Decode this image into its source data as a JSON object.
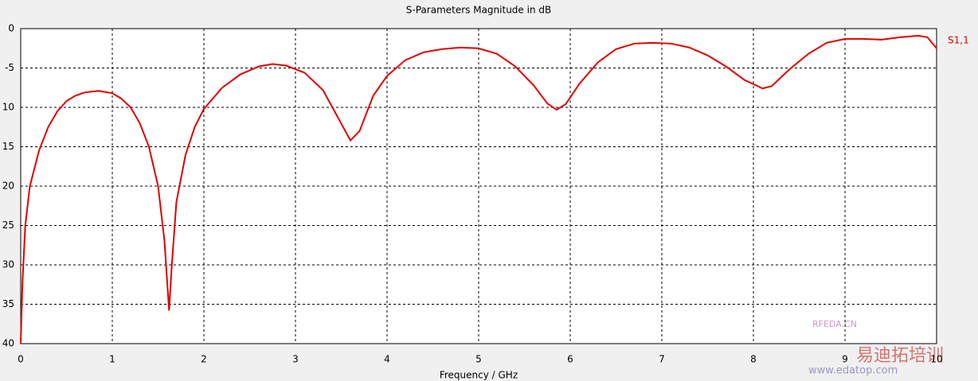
{
  "chart_data": {
    "type": "line",
    "title": "S-Parameters Magnitude in dB",
    "xlabel": "Frequency / GHz",
    "x": [
      0,
      0.02,
      0.05,
      0.1,
      0.2,
      0.3,
      0.4,
      0.5,
      0.6,
      0.7,
      0.85,
      1.0,
      1.1,
      1.2,
      1.3,
      1.4,
      1.5,
      1.57,
      1.62,
      1.65,
      1.7,
      1.8,
      1.9,
      2.0,
      2.2,
      2.4,
      2.6,
      2.75,
      2.9,
      3.1,
      3.3,
      3.45,
      3.6,
      3.7,
      3.85,
      4.0,
      4.2,
      4.4,
      4.6,
      4.8,
      5.0,
      5.2,
      5.4,
      5.6,
      5.75,
      5.85,
      5.95,
      6.1,
      6.3,
      6.5,
      6.7,
      6.9,
      7.1,
      7.3,
      7.5,
      7.7,
      7.9,
      8.1,
      8.2,
      8.4,
      8.6,
      8.8,
      9.0,
      9.2,
      9.4,
      9.6,
      9.8,
      9.9,
      10.0
    ],
    "series": [
      {
        "name": "S1,1",
        "color": "#e00000",
        "values": [
          -40,
          -32,
          -25,
          -20,
          -15.5,
          -12.5,
          -10.5,
          -9.2,
          -8.5,
          -8.1,
          -7.9,
          -8.2,
          -8.9,
          -10,
          -12,
          -15,
          -20,
          -27,
          -35.8,
          -30,
          -22,
          -16,
          -12.5,
          -10.2,
          -7.5,
          -5.8,
          -4.8,
          -4.5,
          -4.7,
          -5.6,
          -7.8,
          -11,
          -14.2,
          -13,
          -8.5,
          -6,
          -4,
          -3,
          -2.6,
          -2.4,
          -2.5,
          -3.2,
          -4.8,
          -7.2,
          -9.5,
          -10.3,
          -9.6,
          -7,
          -4.3,
          -2.6,
          -1.9,
          -1.8,
          -1.9,
          -2.4,
          -3.4,
          -4.8,
          -6.5,
          -7.6,
          -7.3,
          -5.1,
          -3.2,
          -1.8,
          -1.3,
          -1.3,
          -1.4,
          -1.1,
          -0.9,
          -1.1,
          -2.5
        ]
      }
    ],
    "xlim": [
      0,
      10
    ],
    "xticks": [
      0,
      1,
      2,
      3,
      4,
      5,
      6,
      7,
      8,
      9,
      10
    ],
    "ylim": [
      -40,
      0
    ],
    "yticks": [
      0,
      -5,
      {
        "value": -10,
        "label": "10"
      },
      {
        "value": -15,
        "label": "15"
      },
      {
        "value": -20,
        "label": "20"
      },
      {
        "value": -25,
        "label": "25"
      },
      {
        "value": -30,
        "label": "30"
      },
      {
        "value": -35,
        "label": "35"
      },
      {
        "value": -40,
        "label": "40"
      }
    ],
    "grid": true,
    "annotations": [
      "RFEDA.CN",
      "易迪拓培训",
      "www.edatop.com"
    ]
  }
}
